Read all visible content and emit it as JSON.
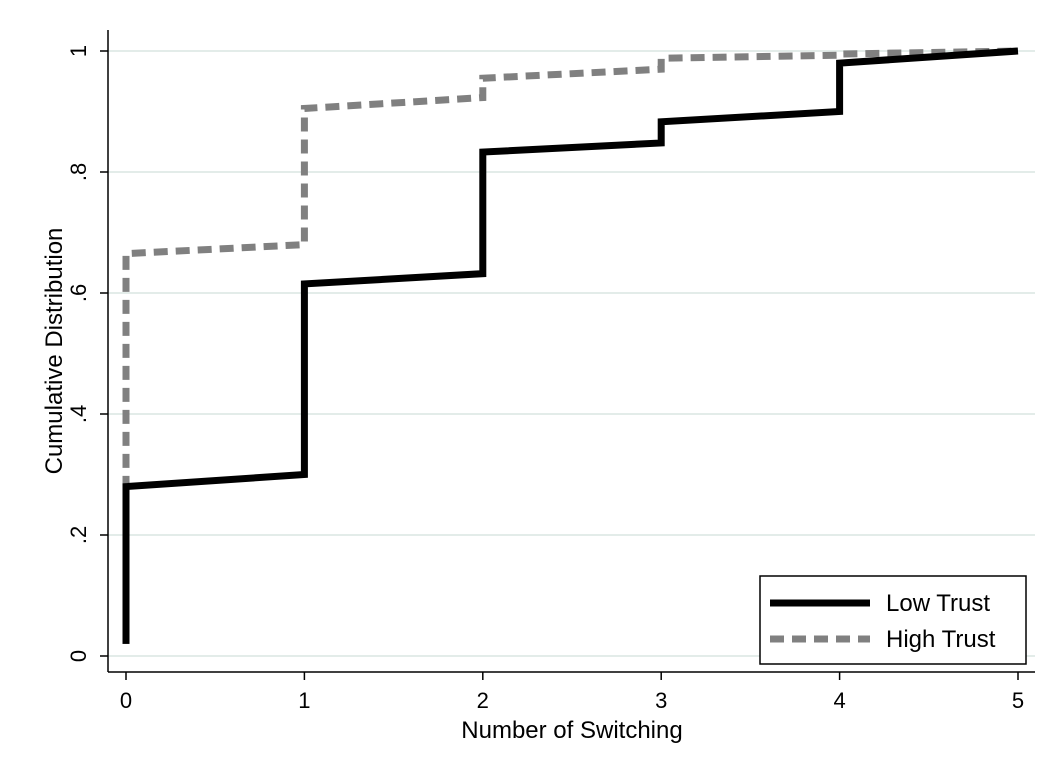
{
  "chart_data": {
    "type": "line",
    "step": true,
    "title": "",
    "xlabel": "Number of Switching",
    "ylabel": "Cumulative Distribution",
    "xlim": [
      0,
      5
    ],
    "ylim": [
      0,
      1
    ],
    "xticks": [
      0,
      1,
      2,
      3,
      4,
      5
    ],
    "xtick_labels": [
      "0",
      "1",
      "2",
      "3",
      "4",
      "5"
    ],
    "yticks": [
      0,
      0.2,
      0.4,
      0.6,
      0.8,
      1
    ],
    "ytick_labels": [
      "0",
      ".2",
      ".4",
      ".6",
      ".8",
      "1"
    ],
    "grid": "horizontal",
    "legend": "bottom-right",
    "series": [
      {
        "name": "Low Trust",
        "color": "#000000",
        "dash": "solid",
        "points": [
          [
            0,
            0.02
          ],
          [
            0,
            0.28
          ],
          [
            1,
            0.3
          ],
          [
            1,
            0.615
          ],
          [
            2,
            0.632
          ],
          [
            2,
            0.833
          ],
          [
            3,
            0.848
          ],
          [
            3,
            0.883
          ],
          [
            4,
            0.9
          ],
          [
            4,
            0.98
          ],
          [
            5,
            1.0
          ]
        ]
      },
      {
        "name": "High Trust",
        "color": "#808080",
        "dash": "dashed",
        "points": [
          [
            0,
            0.02
          ],
          [
            0,
            0.665
          ],
          [
            1,
            0.68
          ],
          [
            1,
            0.905
          ],
          [
            2,
            0.923
          ],
          [
            2,
            0.955
          ],
          [
            3,
            0.97
          ],
          [
            3,
            0.988
          ],
          [
            4,
            0.993
          ],
          [
            4,
            0.995
          ],
          [
            5,
            1.0
          ]
        ]
      }
    ]
  }
}
